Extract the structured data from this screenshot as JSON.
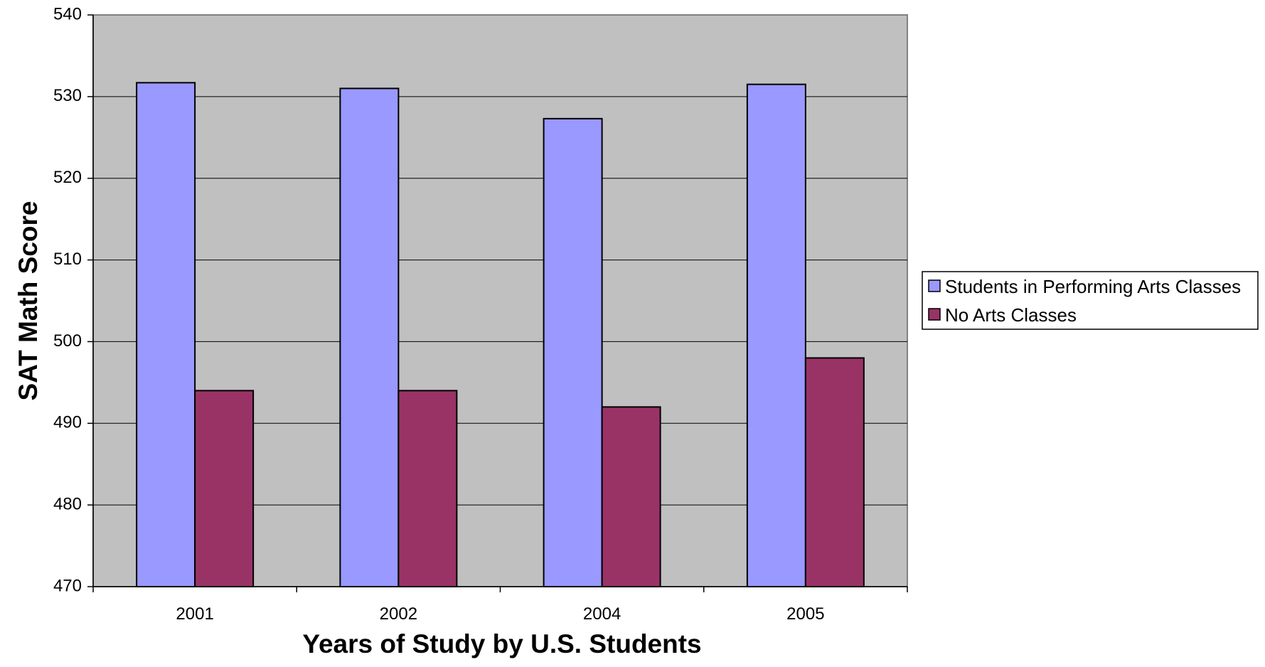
{
  "chart_data": {
    "type": "bar",
    "title": "",
    "xlabel": "Years of Study by U.S. Students",
    "ylabel": "SAT Math Score",
    "categories": [
      "2001",
      "2002",
      "2004",
      "2005"
    ],
    "series": [
      {
        "name": "Students in Performing Arts Classes",
        "values": [
          531.7,
          531.0,
          527.3,
          531.5
        ],
        "color": "#9999ff"
      },
      {
        "name": "No Arts Classes",
        "values": [
          494,
          494,
          492,
          498
        ],
        "color": "#993366"
      }
    ],
    "ylim": [
      470,
      540
    ],
    "yticks": [
      "470",
      "480",
      "490",
      "500",
      "510",
      "520",
      "530",
      "540"
    ],
    "grid": true,
    "plot_background": "#c0c0c0",
    "legend_position": "right"
  }
}
